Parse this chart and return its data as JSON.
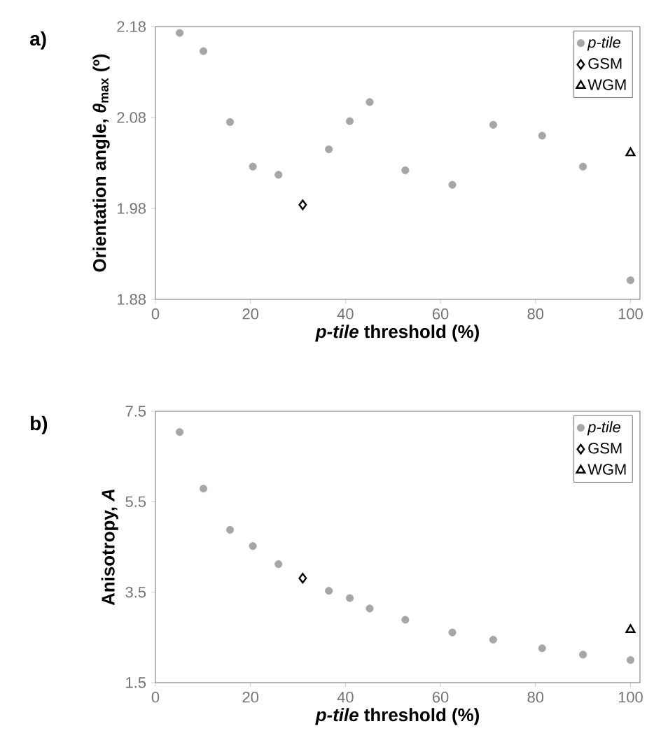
{
  "chart_data": [
    {
      "type": "scatter",
      "title": "a)",
      "xlabel": "*p-tile* threshold (%)",
      "ylabel": "Orientation angle, *θ*$_{max}$ (º)",
      "xlim": [
        0,
        102
      ],
      "xticks": [
        0,
        20,
        40,
        60,
        80,
        100
      ],
      "ylim": [
        1.88,
        2.18
      ],
      "yticks": [
        1.88,
        1.98,
        2.08,
        2.18
      ],
      "grid": false,
      "legend": "top right",
      "series": [
        {
          "name": "p-tile",
          "color": "#a6a6a6",
          "marker": "circle",
          "x": [
            5.1,
            10.1,
            15.7,
            20.5,
            25.9,
            36.5,
            40.9,
            45.1,
            52.6,
            62.5,
            71.1,
            81.4,
            90.0,
            100
          ],
          "values": [
            2.173,
            2.153,
            2.075,
            2.026,
            2.017,
            2.045,
            2.076,
            2.097,
            2.022,
            2.006,
            2.072,
            2.06,
            2.026,
            1.901
          ]
        },
        {
          "name": "GSM",
          "color": "#000000",
          "marker": "diamond",
          "x": [
            31
          ],
          "values": [
            1.984
          ]
        },
        {
          "name": "WGM",
          "color": "#000000",
          "marker": "triangle",
          "x": [
            100
          ],
          "values": [
            2.041
          ]
        }
      ]
    },
    {
      "type": "scatter",
      "title": "b)",
      "xlabel": "*p-tile* threshold (%)",
      "ylabel": "Anisotropy, *A*",
      "xlim": [
        0,
        102
      ],
      "xticks": [
        0,
        20,
        40,
        60,
        80,
        100
      ],
      "ylim": [
        1.5,
        7.5
      ],
      "yticks": [
        1.5,
        3.5,
        5.5,
        7.5
      ],
      "grid": false,
      "legend": "top right",
      "series": [
        {
          "name": "p-tile",
          "color": "#a6a6a6",
          "marker": "circle",
          "x": [
            5.1,
            10.1,
            15.7,
            20.5,
            25.9,
            36.5,
            40.9,
            45.1,
            52.6,
            62.5,
            71.1,
            81.4,
            90.0,
            100
          ],
          "values": [
            7.04,
            5.79,
            4.88,
            4.52,
            4.12,
            3.53,
            3.37,
            3.14,
            2.89,
            2.61,
            2.45,
            2.26,
            2.12,
            2.0
          ]
        },
        {
          "name": "GSM",
          "color": "#000000",
          "marker": "diamond",
          "x": [
            31
          ],
          "values": [
            3.81
          ]
        },
        {
          "name": "WGM",
          "color": "#000000",
          "marker": "triangle",
          "x": [
            100
          ],
          "values": [
            2.67
          ]
        }
      ]
    }
  ]
}
